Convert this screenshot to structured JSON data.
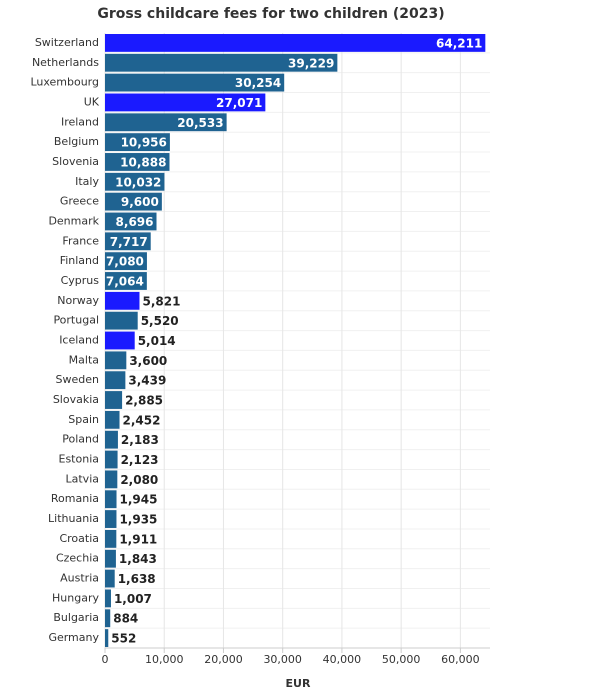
{
  "chart_data": {
    "type": "hbar",
    "title": "Gross childcare fees for two children (2023)",
    "x_label": "EUR",
    "categories": [
      "Switzerland",
      "Netherlands",
      "Luxembourg",
      "UK",
      "Ireland",
      "Belgium",
      "Slovenia",
      "Italy",
      "Greece",
      "Denmark",
      "France",
      "Finland",
      "Cyprus",
      "Norway",
      "Portugal",
      "Iceland",
      "Malta",
      "Sweden",
      "Slovakia",
      "Spain",
      "Poland",
      "Estonia",
      "Latvia",
      "Romania",
      "Lithuania",
      "Croatia",
      "Czechia",
      "Austria",
      "Hungary",
      "Bulgaria",
      "Germany"
    ],
    "values": [
      64211,
      39229,
      30254,
      27071,
      20533,
      10956,
      10888,
      10032,
      9600,
      8696,
      7717,
      7080,
      7064,
      5821,
      5520,
      5014,
      3600,
      3439,
      2885,
      2452,
      2183,
      2123,
      2080,
      1945,
      1935,
      1911,
      1843,
      1638,
      1007,
      884,
      552
    ],
    "value_labels": [
      "64,211",
      "39,229",
      "30,254",
      "27,071",
      "20,533",
      "10,956",
      "10,888",
      "10,032",
      "9,600",
      "8,696",
      "7,717",
      "7,080",
      "7,064",
      "5,821",
      "5,520",
      "5,014",
      "3,600",
      "3,439",
      "2,885",
      "2,452",
      "2,183",
      "2,123",
      "2,080",
      "1,945",
      "1,935",
      "1,911",
      "1,843",
      "1,638",
      "1,007",
      "884",
      "552"
    ],
    "colors": [
      "#1a1aff",
      "#1f6391",
      "#1f6391",
      "#1a1aff",
      "#1f6391",
      "#1f6391",
      "#1f6391",
      "#1f6391",
      "#1f6391",
      "#1f6391",
      "#1f6391",
      "#1f6391",
      "#1f6391",
      "#1a1aff",
      "#1f6391",
      "#1a1aff",
      "#1f6391",
      "#1f6391",
      "#1f6391",
      "#1f6391",
      "#1f6391",
      "#1f6391",
      "#1f6391",
      "#1f6391",
      "#1f6391",
      "#1f6391",
      "#1f6391",
      "#1f6391",
      "#1f6391",
      "#1f6391",
      "#1f6391"
    ],
    "xlim": [
      0,
      65000
    ],
    "xticks": [
      0,
      {
        "value": 10000,
        "label": "10,000"
      },
      {
        "value": 20000,
        "label": "20,000"
      },
      {
        "value": 30000,
        "label": "30,000"
      },
      {
        "value": 40000,
        "label": "40,000"
      },
      {
        "value": 50000,
        "label": "50,000"
      },
      {
        "value": 60000,
        "label": "60,000"
      }
    ],
    "grid": true
  }
}
